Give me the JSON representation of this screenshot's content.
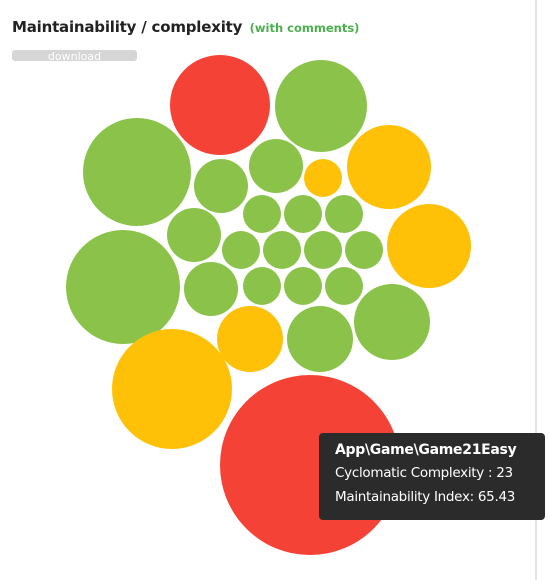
{
  "header": {
    "title": "Maintainability / complexity",
    "subtitle": "(with comments)"
  },
  "toolbar": {
    "download_label": "download"
  },
  "colors": {
    "green": "#8bc34a",
    "yellow": "#ffc107",
    "red": "#f44336",
    "subtitle": "#4caf50",
    "button": "#d6d6d6",
    "tooltip_bg": "#2b2b2b"
  },
  "tooltip": {
    "name": "App\\Game\\Game21Easy",
    "cyclomatic_label": "Cyclomatic Complexity : ",
    "cyclomatic_value": "23",
    "maintainability_label": "Maintainability Index: ",
    "maintainability_value": "65.43"
  },
  "chart_data": {
    "type": "bubble",
    "encoding": "bubble size = cyclomatic complexity, color = maintainability",
    "bubbles": [
      {
        "status": "red",
        "complexity": 23,
        "maintainability": 65.43
      },
      {
        "status": "red",
        "complexity": 6
      },
      {
        "status": "green",
        "complexity": 7.5
      },
      {
        "status": "green",
        "complexity": 7.5
      },
      {
        "status": "green",
        "complexity": 6.6
      },
      {
        "status": "yellow",
        "complexity": 5.7
      },
      {
        "status": "green",
        "complexity": 4.2
      },
      {
        "status": "green",
        "complexity": 2.1
      },
      {
        "status": "yellow",
        "complexity": 1.1
      },
      {
        "status": "yellow",
        "complexity": 6.6
      },
      {
        "status": "green",
        "complexity": 2.1
      },
      {
        "status": "green",
        "complexity": 1.1
      },
      {
        "status": "green",
        "complexity": 1.1
      },
      {
        "status": "green",
        "complexity": 1.1
      },
      {
        "status": "yellow",
        "complexity": 4.2
      },
      {
        "status": "green",
        "complexity": 1.1
      },
      {
        "status": "green",
        "complexity": 1.1
      },
      {
        "status": "green",
        "complexity": 1.1
      },
      {
        "status": "green",
        "complexity": 1.1
      },
      {
        "status": "green",
        "complexity": 2.1
      },
      {
        "status": "green",
        "complexity": 1.1
      },
      {
        "status": "green",
        "complexity": 1.1
      },
      {
        "status": "green",
        "complexity": 1.1
      },
      {
        "status": "yellow",
        "complexity": 2.1
      },
      {
        "status": "green",
        "complexity": 2.5
      },
      {
        "status": "green",
        "complexity": 3.4
      },
      {
        "status": "yellow",
        "complexity": 7.5
      }
    ]
  }
}
